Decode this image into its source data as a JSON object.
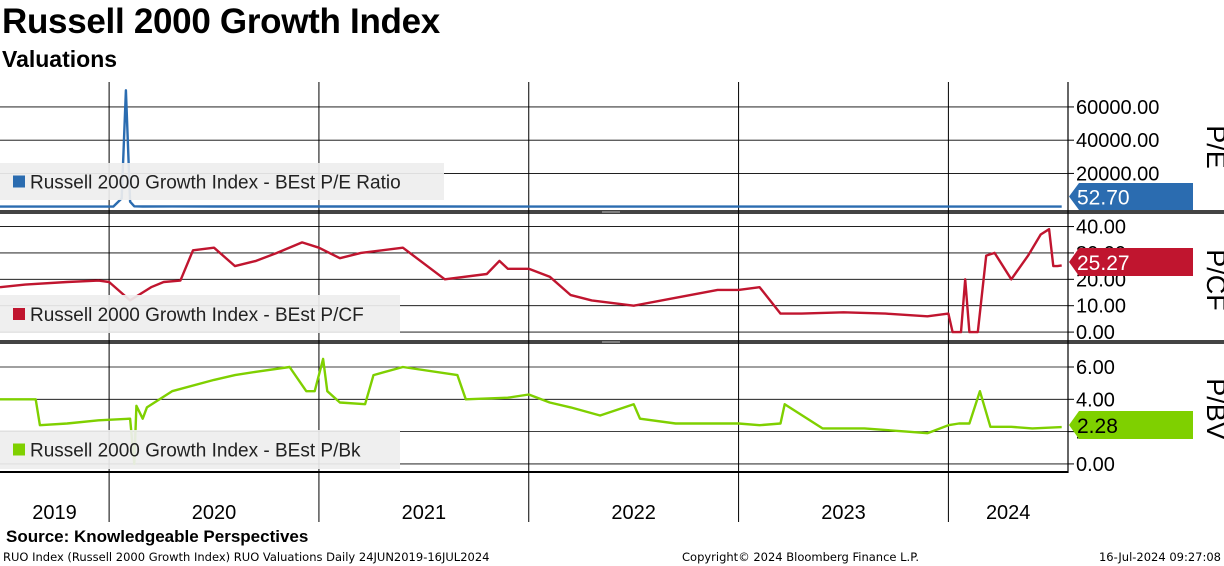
{
  "header": {
    "title": "Russell 2000 Growth Index",
    "subtitle": "Valuations"
  },
  "colors": {
    "pe": "#2b6cb0",
    "pcf": "#c0152f",
    "pbk": "#7fd000",
    "grid": "#000000",
    "legend_bg": "#eeeeee"
  },
  "chart_data": [
    {
      "type": "line",
      "panel": "P/E",
      "ylabel": "P/E",
      "legend": "Russell 2000 Growth Index - BEst P/E Ratio",
      "last_value_label": "52.70",
      "last_value": 52.7,
      "yticks": [
        20000,
        40000,
        60000
      ],
      "ytick_labels": [
        "20000.00",
        "40000.00",
        "60000.00"
      ],
      "ylim": [
        -2000,
        75000
      ],
      "x": [
        2019.48,
        2020.0,
        2020.02,
        2020.06,
        2020.08,
        2020.1,
        2020.12,
        2020.16,
        2020.3,
        2020.5,
        2020.7,
        2020.9,
        2021.0,
        2021.5,
        2022.0,
        2022.5,
        2023.0,
        2023.5,
        2024.0,
        2024.54
      ],
      "values": [
        30,
        28,
        27,
        5000,
        70000,
        3000,
        200,
        100,
        150,
        120,
        110,
        100,
        90,
        80,
        60,
        55,
        50,
        48,
        52,
        52.7
      ]
    },
    {
      "type": "line",
      "panel": "P/CF",
      "ylabel": "P/CF",
      "legend": "Russell 2000 Growth Index - BEst P/CF",
      "last_value_label": "25.27",
      "last_value": 25.27,
      "yticks": [
        0,
        10,
        20,
        30,
        40
      ],
      "ytick_labels": [
        "0.00",
        "10.00",
        "20.00",
        "30.00",
        "40.00"
      ],
      "ylim": [
        -3,
        44
      ],
      "x": [
        2019.48,
        2019.6,
        2019.8,
        2019.95,
        2020.0,
        2020.1,
        2020.18,
        2020.2,
        2020.26,
        2020.34,
        2020.4,
        2020.5,
        2020.6,
        2020.7,
        2020.8,
        2020.92,
        2021.0,
        2021.1,
        2021.2,
        2021.4,
        2021.6,
        2021.8,
        2021.86,
        2021.9,
        2022.0,
        2022.1,
        2022.2,
        2022.3,
        2022.5,
        2022.7,
        2022.9,
        2023.0,
        2023.1,
        2023.2,
        2023.3,
        2023.5,
        2023.7,
        2023.9,
        2023.95,
        2024.0,
        2024.02,
        2024.06,
        2024.08,
        2024.1,
        2024.14,
        2024.18,
        2024.22,
        2024.3,
        2024.38,
        2024.44,
        2024.48,
        2024.5,
        2024.52,
        2024.54
      ],
      "values": [
        17,
        18,
        19,
        19.5,
        19,
        12,
        16,
        17,
        19,
        19.5,
        31,
        32,
        25,
        27,
        30,
        34,
        32,
        28,
        30,
        32,
        20,
        22,
        27,
        24,
        24,
        21,
        14,
        12,
        10,
        13,
        16,
        16,
        17,
        7,
        7,
        7.5,
        7,
        6,
        6.5,
        7,
        0,
        0,
        20,
        0,
        0,
        29,
        30,
        20,
        29,
        37,
        39,
        25,
        25,
        25.27
      ]
    },
    {
      "type": "line",
      "panel": "P/BV",
      "ylabel": "P/BV",
      "legend": "Russell 2000 Growth Index - BEst P/Bk",
      "last_value_label": "2.28",
      "last_value": 2.28,
      "yticks": [
        0,
        2,
        4,
        6
      ],
      "ytick_labels": [
        "0.00",
        "2.00",
        "4.00",
        "6.00"
      ],
      "ylim": [
        -0.5,
        7.3
      ],
      "x": [
        2019.48,
        2019.65,
        2019.67,
        2019.8,
        2019.95,
        2020.1,
        2020.12,
        2020.13,
        2020.16,
        2020.18,
        2020.3,
        2020.5,
        2020.6,
        2020.7,
        2020.86,
        2020.94,
        2020.98,
        2021.02,
        2021.04,
        2021.1,
        2021.22,
        2021.26,
        2021.4,
        2021.66,
        2021.7,
        2021.9,
        2022.0,
        2022.1,
        2022.2,
        2022.34,
        2022.5,
        2022.53,
        2022.7,
        2022.9,
        2023.0,
        2023.1,
        2023.2,
        2023.22,
        2023.4,
        2023.6,
        2023.8,
        2023.9,
        2024.0,
        2024.05,
        2024.1,
        2024.15,
        2024.2,
        2024.3,
        2024.4,
        2024.54
      ],
      "values": [
        4.0,
        4.0,
        2.4,
        2.5,
        2.7,
        2.8,
        0,
        3.6,
        2.8,
        3.5,
        4.5,
        5.2,
        5.5,
        5.7,
        6.0,
        4.5,
        4.5,
        6.5,
        4.5,
        3.8,
        3.7,
        5.5,
        6.0,
        5.5,
        4.0,
        4.1,
        4.3,
        3.8,
        3.5,
        3.0,
        3.7,
        2.8,
        2.5,
        2.5,
        2.5,
        2.4,
        2.5,
        3.7,
        2.2,
        2.2,
        2.0,
        1.9,
        2.4,
        2.5,
        2.5,
        4.5,
        2.3,
        2.3,
        2.2,
        2.28
      ]
    }
  ],
  "x_axis": {
    "years": [
      "2019",
      "2020",
      "2021",
      "2022",
      "2023",
      "2024"
    ],
    "year_starts": [
      2020.0,
      2021.0,
      2022.0,
      2023.0,
      2024.0
    ],
    "xlim": [
      2019.48,
      2024.57
    ]
  },
  "footer": {
    "source": "Source: Knowledgeable Perspectives",
    "ticker_info": "RUO Index (Russell 2000 Growth Index) RUO Valuations  Daily 24JUN2019-16JUL2024",
    "copyright": "Copyright© 2024 Bloomberg Finance L.P.",
    "timestamp": "16-Jul-2024 09:27:08"
  }
}
